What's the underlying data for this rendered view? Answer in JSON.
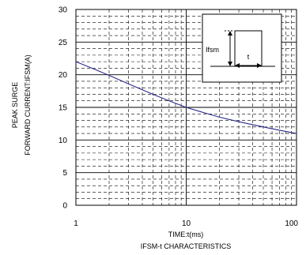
{
  "chart_data": {
    "type": "line",
    "title": "IFSM-t CHARACTERISTICS",
    "xlabel": "TIME:t(ms)",
    "ylabel_line1": "PEAK SURGE",
    "ylabel_line2": "FORWARD CURRENT:IFSM(A)",
    "x_scale": "log",
    "xlim": [
      1,
      100
    ],
    "ylim": [
      0,
      30
    ],
    "x_ticks": [
      1,
      10,
      100
    ],
    "x_tick_labels": [
      "1",
      "10",
      "100"
    ],
    "y_ticks": [
      0,
      5,
      10,
      15,
      20,
      25,
      30
    ],
    "y_tick_labels": [
      "0",
      "5",
      "10",
      "15",
      "20",
      "25",
      "30"
    ],
    "grid": true,
    "series": [
      {
        "color": "#2b2b8c",
        "x": [
          1,
          1.5,
          2,
          3,
          5,
          7,
          10,
          15,
          20,
          30,
          50,
          70,
          100
        ],
        "y": [
          22.0,
          20.8,
          19.9,
          18.6,
          17.0,
          16.0,
          15.0,
          14.1,
          13.5,
          12.8,
          12.0,
          11.5,
          11.0
        ]
      }
    ],
    "inset": {
      "label_ifsm": "Ifsm",
      "label_t": "t"
    }
  }
}
